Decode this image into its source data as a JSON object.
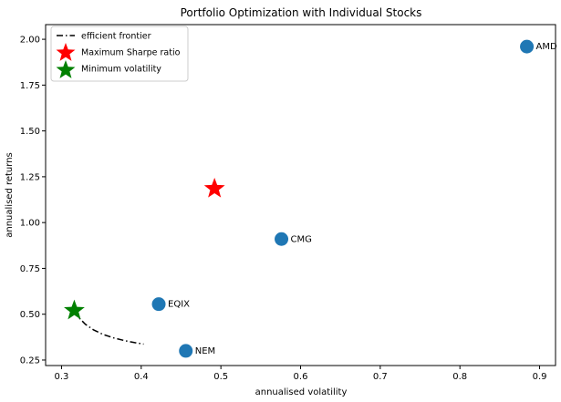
{
  "chart_data": {
    "type": "scatter",
    "title": "Portfolio Optimization with Individual Stocks",
    "xlabel": "annualised volatility",
    "ylabel": "annualised returns",
    "xlim": [
      0.28,
      0.92
    ],
    "ylim": [
      0.22,
      2.08
    ],
    "xticks": [
      0.3,
      0.4,
      0.5,
      0.6,
      0.7,
      0.8,
      0.9
    ],
    "xtick_labels": [
      "0.3",
      "0.4",
      "0.5",
      "0.6",
      "0.7",
      "0.8",
      "0.9"
    ],
    "yticks": [
      0.25,
      0.5,
      0.75,
      1.0,
      1.25,
      1.5,
      1.75,
      2.0
    ],
    "ytick_labels": [
      "0.25",
      "0.50",
      "0.75",
      "1.00",
      "1.25",
      "1.50",
      "1.75",
      "2.00"
    ],
    "grid": false,
    "legend_position": "top-left",
    "stocks": {
      "color": "#1f77b4",
      "points": [
        {
          "label": "AMD",
          "x": 0.884,
          "y": 1.96
        },
        {
          "label": "CMG",
          "x": 0.576,
          "y": 0.91
        },
        {
          "label": "EQIX",
          "x": 0.422,
          "y": 0.555
        },
        {
          "label": "NEM",
          "x": 0.456,
          "y": 0.3
        }
      ]
    },
    "series": [
      {
        "name": "efficient frontier",
        "kind": "line",
        "style": "dashdot",
        "color": "#000000",
        "x": [
          0.316,
          0.322,
          0.33,
          0.34,
          0.352,
          0.366,
          0.38,
          0.392,
          0.403
        ],
        "y": [
          0.52,
          0.48,
          0.445,
          0.415,
          0.39,
          0.37,
          0.355,
          0.345,
          0.337
        ]
      },
      {
        "name": "Maximum Sharpe ratio",
        "kind": "star",
        "color": "#ff0000",
        "x": [
          0.492
        ],
        "y": [
          1.185
        ]
      },
      {
        "name": "Minimum volatility",
        "kind": "star",
        "color": "#008000",
        "x": [
          0.316
        ],
        "y": [
          0.52
        ]
      }
    ]
  }
}
